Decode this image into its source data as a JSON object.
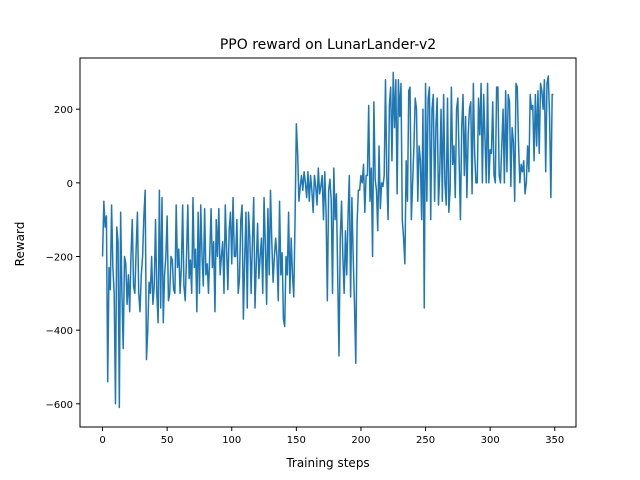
{
  "chart_data": {
    "type": "line",
    "title": "PPO reward on LunarLander-v2",
    "x_label": "Training steps",
    "y_label": "Reward",
    "x": [
      0,
      1,
      2,
      3,
      4,
      5,
      6,
      7,
      8,
      9,
      10,
      11,
      12,
      13,
      14,
      15,
      16,
      17,
      18,
      19,
      20,
      21,
      22,
      23,
      24,
      25,
      26,
      27,
      28,
      29,
      30,
      31,
      32,
      33,
      34,
      35,
      36,
      37,
      38,
      39,
      40,
      41,
      42,
      43,
      44,
      45,
      46,
      47,
      48,
      49,
      50,
      51,
      52,
      53,
      54,
      55,
      56,
      57,
      58,
      59,
      60,
      61,
      62,
      63,
      64,
      65,
      66,
      67,
      68,
      69,
      70,
      71,
      72,
      73,
      74,
      75,
      76,
      77,
      78,
      79,
      80,
      81,
      82,
      83,
      84,
      85,
      86,
      87,
      88,
      89,
      90,
      91,
      92,
      93,
      94,
      95,
      96,
      97,
      98,
      99,
      100,
      101,
      102,
      103,
      104,
      105,
      106,
      107,
      108,
      109,
      110,
      111,
      112,
      113,
      114,
      115,
      116,
      117,
      118,
      119,
      120,
      121,
      122,
      123,
      124,
      125,
      126,
      127,
      128,
      129,
      130,
      131,
      132,
      133,
      134,
      135,
      136,
      137,
      138,
      139,
      140,
      141,
      142,
      143,
      144,
      145,
      146,
      147,
      148,
      149,
      150,
      151,
      152,
      153,
      154,
      155,
      156,
      157,
      158,
      159,
      160,
      161,
      162,
      163,
      164,
      165,
      166,
      167,
      168,
      169,
      170,
      171,
      172,
      173,
      174,
      175,
      176,
      177,
      178,
      179,
      180,
      181,
      182,
      183,
      184,
      185,
      186,
      187,
      188,
      189,
      190,
      191,
      192,
      193,
      194,
      195,
      196,
      197,
      198,
      199,
      200,
      201,
      202,
      203,
      204,
      205,
      206,
      207,
      208,
      209,
      210,
      211,
      212,
      213,
      214,
      215,
      216,
      217,
      218,
      219,
      220,
      221,
      222,
      223,
      224,
      225,
      226,
      227,
      228,
      229,
      230,
      231,
      232,
      233,
      234,
      235,
      236,
      237,
      238,
      239,
      240,
      241,
      242,
      243,
      244,
      245,
      246,
      247,
      248,
      249,
      250,
      251,
      252,
      253,
      254,
      255,
      256,
      257,
      258,
      259,
      260,
      261,
      262,
      263,
      264,
      265,
      266,
      267,
      268,
      269,
      270,
      271,
      272,
      273,
      274,
      275,
      276,
      277,
      278,
      279,
      280,
      281,
      282,
      283,
      284,
      285,
      286,
      287,
      288,
      289,
      290,
      291,
      292,
      293,
      294,
      295,
      296,
      297,
      298,
      299,
      300,
      301,
      302,
      303,
      304,
      305,
      306,
      307,
      308,
      309,
      310,
      311,
      312,
      313,
      314,
      315,
      316,
      317,
      318,
      319,
      320,
      321,
      322,
      323,
      324,
      325,
      326,
      327,
      328,
      329,
      330,
      331,
      332,
      333,
      334,
      335,
      336,
      337,
      338,
      339,
      340,
      341,
      342,
      343,
      344,
      345,
      346,
      347,
      348,
      349
    ],
    "series": [
      {
        "color": "#1f77b4",
        "values": [
          -200,
          -50,
          -120,
          -90,
          -540,
          -230,
          -290,
          -60,
          -230,
          -300,
          -600,
          -120,
          -160,
          -610,
          -80,
          -300,
          -450,
          -200,
          -220,
          -330,
          -250,
          -350,
          -200,
          -100,
          -280,
          -300,
          -180,
          -80,
          -300,
          -350,
          -250,
          -200,
          -90,
          -20,
          -480,
          -400,
          -270,
          -300,
          -200,
          -330,
          -280,
          -100,
          -300,
          -380,
          -20,
          -340,
          -40,
          -380,
          -250,
          -200,
          -90,
          -320,
          -300,
          -200,
          -210,
          -290,
          -300,
          -60,
          -230,
          -180,
          -300,
          -230,
          -60,
          -280,
          -320,
          -200,
          -60,
          -260,
          -210,
          -300,
          -40,
          -230,
          -180,
          -350,
          -80,
          -300,
          -60,
          -200,
          -280,
          -70,
          -250,
          -220,
          -300,
          -190,
          -70,
          -230,
          -160,
          -350,
          -100,
          -200,
          -70,
          -250,
          -200,
          -160,
          -300,
          -60,
          -180,
          -290,
          -130,
          -80,
          -220,
          -40,
          -200,
          -200,
          -100,
          -300,
          -260,
          -100,
          -60,
          -370,
          -210,
          -80,
          -340,
          -80,
          -150,
          -300,
          -160,
          -40,
          -340,
          -220,
          -110,
          -260,
          -200,
          -150,
          -300,
          -40,
          -170,
          -330,
          -70,
          -250,
          -20,
          -160,
          -270,
          -200,
          -150,
          -200,
          -320,
          -50,
          -250,
          -190,
          -370,
          -390,
          -200,
          -250,
          -80,
          -300,
          -150,
          -250,
          -310,
          -100,
          160,
          80,
          -50,
          -10,
          20,
          -20,
          30,
          0,
          -40,
          30,
          -50,
          20,
          -20,
          -80,
          20,
          -10,
          -60,
          40,
          -30,
          -10,
          20,
          -100,
          30,
          -80,
          -320,
          -20,
          10,
          -50,
          -300,
          40,
          -100,
          -30,
          -250,
          -470,
          -150,
          -50,
          -200,
          -300,
          -130,
          -250,
          -90,
          20,
          -310,
          -40,
          -200,
          -330,
          -490,
          -110,
          -20,
          -20,
          20,
          0,
          50,
          -80,
          20,
          20,
          210,
          -50,
          40,
          -200,
          220,
          10,
          -20,
          -130,
          100,
          -70,
          0,
          -10,
          20,
          280,
          20,
          -100,
          210,
          260,
          60,
          300,
          150,
          280,
          -30,
          280,
          180,
          270,
          -100,
          -150,
          -220,
          60,
          -50,
          250,
          260,
          -100,
          0,
          100,
          230,
          200,
          -50,
          100,
          60,
          -100,
          200,
          -340,
          270,
          -50,
          230,
          260,
          -100,
          200,
          240,
          -50,
          150,
          230,
          -60,
          30,
          200,
          -50,
          240,
          0,
          -60,
          230,
          -80,
          -20,
          260,
          50,
          100,
          -40,
          200,
          230,
          60,
          -100,
          150,
          240,
          20,
          180,
          -40,
          130,
          200,
          220,
          -30,
          270,
          80,
          0,
          0,
          230,
          130,
          270,
          0,
          240,
          120,
          0,
          270,
          0,
          90,
          80,
          220,
          20,
          0,
          260,
          260,
          20,
          0,
          100,
          200,
          0,
          250,
          30,
          240,
          220,
          -10,
          150,
          110,
          -50,
          270,
          260,
          100,
          0,
          50,
          30,
          60,
          -30,
          0,
          100,
          30,
          240,
          200,
          210,
          60,
          240,
          100,
          250,
          80,
          270,
          250,
          200,
          280,
          30,
          270,
          290,
          180,
          -40,
          240,
          240
        ]
      }
    ],
    "xlim": [
      -17.45,
      366.45
    ],
    "ylim": [
      -663,
      339
    ],
    "xticks": [
      0,
      50,
      100,
      150,
      200,
      250,
      300,
      350
    ],
    "yticks": [
      {
        "value": -600,
        "label": "−600"
      },
      {
        "value": -400,
        "label": "−400"
      },
      {
        "value": -200,
        "label": "−200"
      },
      0,
      200
    ]
  }
}
